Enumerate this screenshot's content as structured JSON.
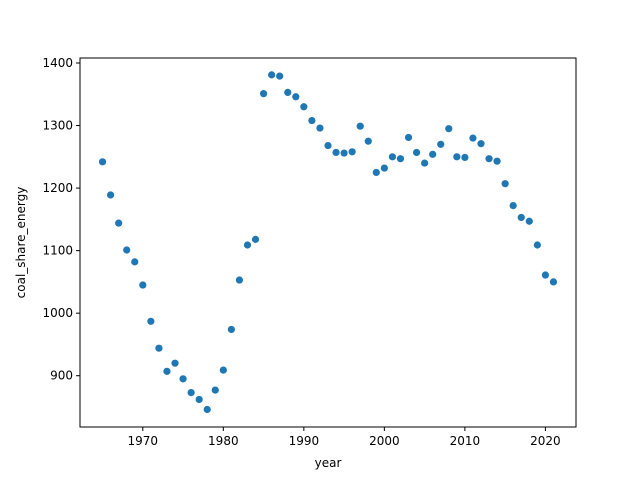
{
  "chart_data": {
    "type": "scatter",
    "title": "",
    "xlabel": "year",
    "ylabel": "coal_share_energy",
    "xlim": [
      1962.2,
      2023.8
    ],
    "ylim": [
      818,
      1408
    ],
    "xticks": [
      1970,
      1980,
      1990,
      2000,
      2010,
      2020
    ],
    "yticks": [
      900,
      1000,
      1100,
      1200,
      1300,
      1400
    ],
    "grid": false,
    "legend": "none",
    "marker_color": "#1f77b4",
    "x": [
      1965,
      1966,
      1967,
      1968,
      1969,
      1970,
      1971,
      1972,
      1973,
      1974,
      1975,
      1976,
      1977,
      1978,
      1979,
      1980,
      1981,
      1982,
      1983,
      1984,
      1985,
      1986,
      1987,
      1988,
      1989,
      1990,
      1991,
      1992,
      1993,
      1994,
      1995,
      1996,
      1997,
      1998,
      1999,
      2000,
      2001,
      2002,
      2003,
      2004,
      2005,
      2006,
      2007,
      2008,
      2009,
      2010,
      2011,
      2012,
      2013,
      2014,
      2015,
      2016,
      2017,
      2018,
      2019,
      2020,
      2021
    ],
    "y": [
      1242,
      1189,
      1144,
      1101,
      1082,
      1045,
      987,
      944,
      907,
      920,
      895,
      873,
      862,
      846,
      877,
      909,
      974,
      1053,
      1109,
      1118,
      1351,
      1381,
      1379,
      1353,
      1346,
      1330,
      1308,
      1296,
      1268,
      1257,
      1256,
      1258,
      1299,
      1275,
      1225,
      1232,
      1250,
      1247,
      1281,
      1257,
      1240,
      1254,
      1270,
      1295,
      1250,
      1249,
      1280,
      1271,
      1247,
      1243,
      1207,
      1172,
      1153,
      1147,
      1109,
      1061,
      1050
    ]
  }
}
